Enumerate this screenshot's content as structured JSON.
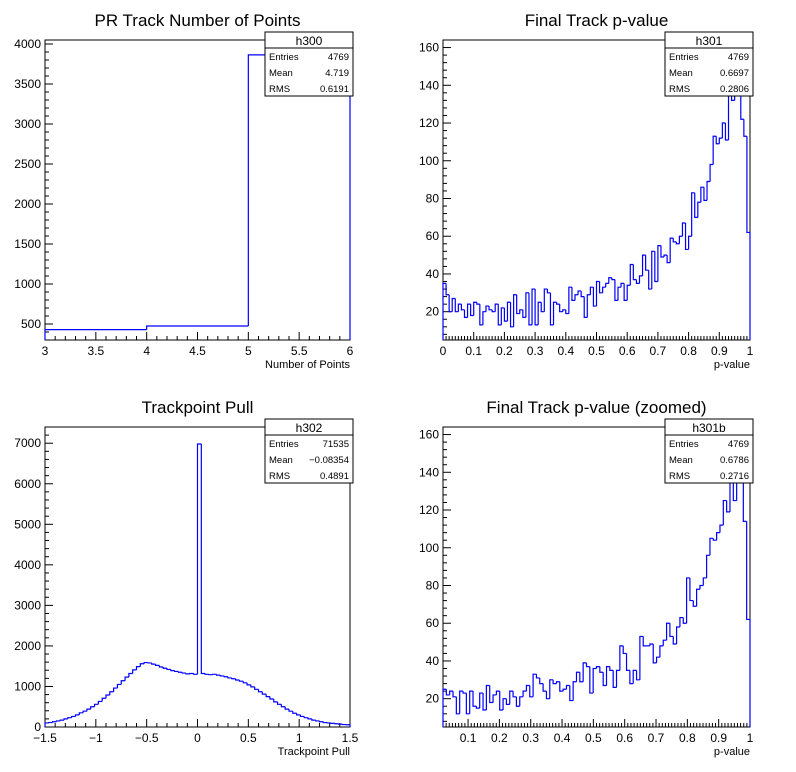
{
  "chart_data": [
    {
      "type": "histogram",
      "title": "PR Track Number of Points",
      "xlabel": "Number of Points",
      "ylabel": "",
      "xlim": [
        3,
        6
      ],
      "ylim": [
        300,
        4050
      ],
      "xticks": [
        3,
        3.5,
        4,
        4.5,
        5,
        5.5,
        6
      ],
      "yticks": [
        500,
        1000,
        1500,
        2000,
        2500,
        3000,
        3500,
        4000
      ],
      "line_color": "#0000ff",
      "bin_edges": [
        3,
        4,
        5,
        6
      ],
      "values": [
        430,
        475,
        3864
      ],
      "stats": {
        "name": "h300",
        "Entries": "4769",
        "Mean": "4.719",
        "RMS": "0.6191"
      }
    },
    {
      "type": "histogram",
      "title": "Final Track p-value",
      "xlabel": "p-value",
      "ylabel": "",
      "xlim": [
        0,
        1
      ],
      "ylim": [
        5,
        164
      ],
      "xticks": [
        0,
        0.1,
        0.2,
        0.3,
        0.4,
        0.5,
        0.6,
        0.7,
        0.8,
        0.9,
        1
      ],
      "yticks": [
        20,
        40,
        60,
        80,
        100,
        120,
        140,
        160
      ],
      "line_color": "#0000ff",
      "bin_edges": [
        0,
        1
      ],
      "values": [
        35,
        29,
        20,
        27,
        20,
        24,
        21,
        17,
        24,
        18,
        25,
        24,
        13,
        20,
        23,
        21,
        20,
        24,
        13,
        22,
        15,
        25,
        12,
        29,
        19,
        21,
        17,
        30,
        13,
        32,
        13,
        25,
        20,
        32,
        30,
        13,
        25,
        24,
        20,
        21,
        19,
        33,
        26,
        29,
        31,
        28,
        17,
        29,
        33,
        23,
        36,
        30,
        33,
        35,
        38,
        37,
        26,
        33,
        35,
        26,
        34,
        45,
        37,
        35,
        39,
        50,
        42,
        32,
        52,
        36,
        55,
        49,
        50,
        46,
        59,
        57,
        56,
        60,
        67,
        53,
        60,
        83,
        70,
        78,
        86,
        79,
        89,
        98,
        113,
        109,
        112,
        120,
        111,
        139,
        132,
        140,
        138,
        122,
        113,
        62
      ],
      "stats": {
        "name": "h301",
        "Entries": "4769",
        "Mean": "0.6697",
        "RMS": "0.2806"
      }
    },
    {
      "type": "histogram",
      "title": "Trackpoint Pull",
      "xlabel": "Trackpoint Pull",
      "ylabel": "",
      "xlim": [
        -1.5,
        1.5
      ],
      "ylim": [
        0,
        7400
      ],
      "xticks": [
        -1.5,
        -1,
        -0.5,
        0,
        0.5,
        1,
        1.5
      ],
      "yticks": [
        0,
        1000,
        2000,
        3000,
        4000,
        5000,
        6000,
        7000
      ],
      "line_color": "#0000ff",
      "bin_edges": [
        -1.5,
        1.5
      ],
      "values": [
        100,
        110,
        130,
        150,
        170,
        200,
        230,
        260,
        300,
        350,
        390,
        440,
        500,
        560,
        630,
        710,
        790,
        870,
        960,
        1050,
        1140,
        1230,
        1320,
        1410,
        1490,
        1560,
        1590,
        1580,
        1550,
        1520,
        1480,
        1450,
        1420,
        1390,
        1370,
        1350,
        1330,
        1310,
        1320,
        1300,
        6980,
        1320,
        1300,
        1290,
        1300,
        1280,
        1260,
        1240,
        1210,
        1190,
        1160,
        1130,
        1090,
        1040,
        990,
        930,
        870,
        810,
        750,
        690,
        620,
        560,
        500,
        440,
        390,
        340,
        300,
        260,
        230,
        200,
        170,
        150,
        130,
        110,
        100,
        90,
        80,
        70,
        60,
        55
      ],
      "stats": {
        "name": "h302",
        "Entries": "71535",
        "Mean": "−0.08354",
        "RMS": "0.4891"
      }
    },
    {
      "type": "histogram",
      "title": "Final Track p-value (zoomed)",
      "xlabel": "p-value",
      "ylabel": "",
      "xlim": [
        0.02,
        1
      ],
      "ylim": [
        5,
        164
      ],
      "xticks": [
        0.1,
        0.2,
        0.3,
        0.4,
        0.5,
        0.6,
        0.7,
        0.8,
        0.9,
        1
      ],
      "yticks": [
        20,
        40,
        60,
        80,
        100,
        120,
        140,
        160
      ],
      "line_color": "#0000ff",
      "bin_edges": [
        0.02,
        1
      ],
      "values": [
        25,
        22,
        24,
        21,
        12,
        24,
        23,
        12,
        24,
        16,
        15,
        23,
        14,
        27,
        18,
        22,
        24,
        14,
        20,
        17,
        24,
        21,
        16,
        21,
        24,
        27,
        21,
        33,
        31,
        28,
        24,
        20,
        30,
        28,
        29,
        24,
        25,
        27,
        19,
        29,
        34,
        29,
        39,
        37,
        23,
        36,
        37,
        34,
        27,
        37,
        35,
        26,
        35,
        48,
        44,
        35,
        28,
        35,
        30,
        53,
        48,
        48,
        49,
        39,
        42,
        48,
        51,
        60,
        53,
        49,
        58,
        63,
        60,
        84,
        72,
        69,
        78,
        80,
        84,
        96,
        105,
        104,
        108,
        112,
        125,
        119,
        137,
        125,
        139,
        147,
        114,
        62
      ],
      "stats": {
        "name": "h301b",
        "Entries": "4769",
        "Mean": "0.6786",
        "RMS": "0.2716"
      }
    }
  ]
}
